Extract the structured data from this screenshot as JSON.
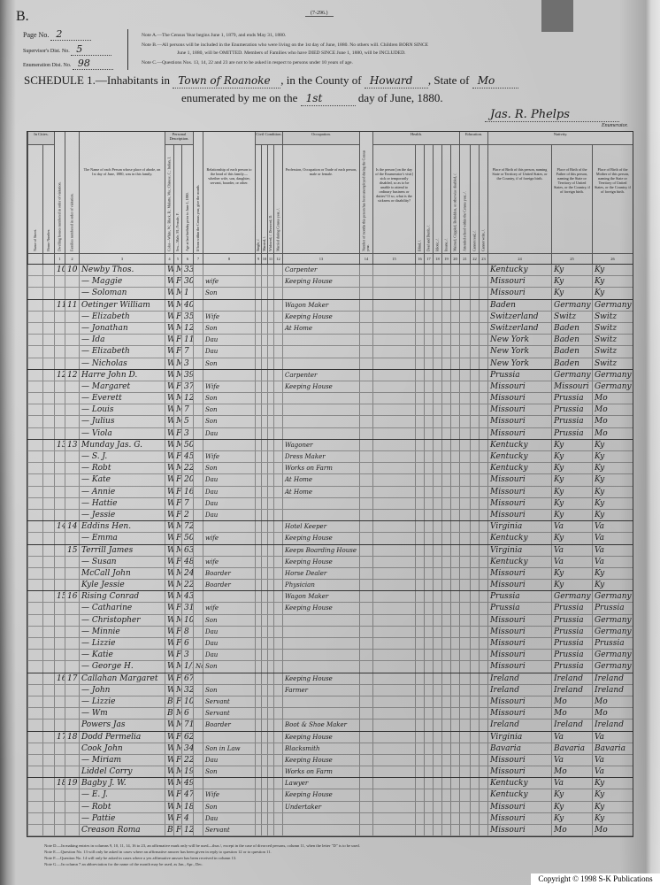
{
  "header": {
    "letter": "B.",
    "form_no": "(7-296.)",
    "page_label": "Page No.",
    "page_value": "2",
    "supervisor_label": "Supervisor's Dist. No.",
    "supervisor_value": "5",
    "enumeration_label": "Enumeration Dist. No.",
    "enumeration_value": "98",
    "notes": [
      "Note A.—The Census Year begins June 1, 1879, and ends May 31, 1880.",
      "Note B.—All persons will be included in the Enumeration who were living on the 1st day of June, 1880. No others will. Children BORN SINCE",
      "June 1, 1880, will be OMITTED. Members of Families who have DIED SINCE June 1, 1880, will be INCLUDED.",
      "Note C.—Questions Nos. 13, 14, 22 and 23 are not to be asked in respect to persons under 10 years of age."
    ],
    "schedule_prefix": "SCHEDULE 1.—Inhabitants in",
    "place": "Town of Roanoke",
    "county_label": ", in the County of",
    "county": "Howard",
    "state_label": ", State of",
    "state": "Mo",
    "enumerated_prefix": "enumerated by me on the",
    "day": "1st",
    "enumerated_suffix": "day of June, 1880.",
    "enumerator": "Jas. R. Phelps",
    "enumerator_label": "Enumerator."
  },
  "groups": {
    "in_cities": "In Cities.",
    "personal": "Personal Description.",
    "civil": "Civil Condition.",
    "occupation": "Occupation.",
    "health": "Health.",
    "education": "Education.",
    "nativity": "Nativity."
  },
  "columns": [
    {
      "n": "",
      "label": "Name of Street."
    },
    {
      "n": "",
      "label": "House Number."
    },
    {
      "n": "1",
      "label": "Dwelling houses numbered in order of visitation."
    },
    {
      "n": "2",
      "label": "Families numbered in order of visitation."
    },
    {
      "n": "3",
      "label": "The Name of each Person whose place of abode, on 1st day of June, 1880, was in this family."
    },
    {
      "n": "4",
      "label": "Color—White, W.; Black, B.; Mulatto, Mu.; Chinese, C.; Indian, I."
    },
    {
      "n": "5",
      "label": "Sex—Male, M.; Female, F."
    },
    {
      "n": "6",
      "label": "Age at last birthday prior to June 1, 1880."
    },
    {
      "n": "7",
      "label": "If born within the Census year, give the month."
    },
    {
      "n": "8",
      "label": "Relationship of each person to the head of this family—whether wife, son, daughter, servant, boarder, or other."
    },
    {
      "n": "9",
      "label": "Single, /."
    },
    {
      "n": "10",
      "label": "Married, /."
    },
    {
      "n": "11",
      "label": "Widowed, /. Divorced, D."
    },
    {
      "n": "12",
      "label": "Married during Census year, /."
    },
    {
      "n": "13",
      "label": "Profession, Occupation or Trade of each person, male or female."
    },
    {
      "n": "14",
      "label": "Number of months this person has been unemployed during the Census year."
    },
    {
      "n": "15",
      "label": "Is the person [on the day of the Enumerator's visit] sick or temporarily disabled, so as to be unable to attend to ordinary business or duties? If so, what is the sickness or disability?"
    },
    {
      "n": "16",
      "label": "Blind, /."
    },
    {
      "n": "17",
      "label": "Deaf and Dumb, /."
    },
    {
      "n": "18",
      "label": "Idiotic, /."
    },
    {
      "n": "19",
      "label": "Insane, /."
    },
    {
      "n": "20",
      "label": "Maimed, Crippled, Bedridden, or otherwise disabled, /."
    },
    {
      "n": "21",
      "label": "Attended school within the Census year, /."
    },
    {
      "n": "22",
      "label": "Cannot read, /."
    },
    {
      "n": "23",
      "label": "Cannot write, /."
    },
    {
      "n": "24",
      "label": "Place of Birth of this person, naming State or Territory of United States, or the Country, if of foreign birth."
    },
    {
      "n": "25",
      "label": "Place of Birth of the Father of this person, naming the State or Territory of United States, or the Country, if of foreign birth."
    },
    {
      "n": "26",
      "label": "Place of Birth of the Mother of this person, naming the State or Territory of United States, or the Country, if of foreign birth."
    }
  ],
  "rows": [
    {
      "d": "10",
      "f": "10",
      "name": "Newby Thos.",
      "color": "W",
      "sex": "M",
      "age": "33",
      "rel": "",
      "occ": "Carpenter",
      "birth": "Kentucky",
      "father": "Ky",
      "mother": "Ky"
    },
    {
      "d": "",
      "f": "",
      "name": "— Maggie",
      "color": "W",
      "sex": "F",
      "age": "30",
      "rel": "wife",
      "occ": "Keeping House",
      "birth": "Missouri",
      "father": "Ky",
      "mother": "Ky"
    },
    {
      "d": "",
      "f": "",
      "name": "— Soloman",
      "color": "W",
      "sex": "M",
      "age": "1",
      "rel": "Son",
      "occ": "",
      "birth": "Missouri",
      "father": "Ky",
      "mother": "Ky"
    },
    {
      "d": "11",
      "f": "11",
      "name": "Oetinger William",
      "color": "W",
      "sex": "M",
      "age": "40",
      "rel": "",
      "occ": "Wagon Maker",
      "birth": "Baden",
      "father": "Germany",
      "mother": "Germany"
    },
    {
      "d": "",
      "f": "",
      "name": "— Elizabeth",
      "color": "W",
      "sex": "F",
      "age": "35",
      "rel": "Wife",
      "occ": "Keeping House",
      "birth": "Switzerland",
      "father": "Switz",
      "mother": "Switz"
    },
    {
      "d": "",
      "f": "",
      "name": "— Jonathan",
      "color": "W",
      "sex": "M",
      "age": "12",
      "rel": "Son",
      "occ": "At Home",
      "birth": "Switzerland",
      "father": "Baden",
      "mother": "Switz"
    },
    {
      "d": "",
      "f": "",
      "name": "— Ida",
      "color": "W",
      "sex": "F",
      "age": "11",
      "rel": "Dau",
      "occ": "",
      "birth": "New York",
      "father": "Baden",
      "mother": "Switz"
    },
    {
      "d": "",
      "f": "",
      "name": "— Elizabeth",
      "color": "W",
      "sex": "F",
      "age": "7",
      "rel": "Dau",
      "occ": "",
      "birth": "New York",
      "father": "Baden",
      "mother": "Switz"
    },
    {
      "d": "",
      "f": "",
      "name": "— Nicholas",
      "color": "W",
      "sex": "M",
      "age": "3",
      "rel": "Son",
      "occ": "",
      "birth": "New York",
      "father": "Baden",
      "mother": "Switz"
    },
    {
      "d": "12",
      "f": "12",
      "name": "Harre John D.",
      "color": "W",
      "sex": "M",
      "age": "39",
      "rel": "",
      "occ": "Carpenter",
      "birth": "Prussia",
      "father": "Germany",
      "mother": "Germany"
    },
    {
      "d": "",
      "f": "",
      "name": "— Margaret",
      "color": "W",
      "sex": "F",
      "age": "37",
      "rel": "Wife",
      "occ": "Keeping House",
      "birth": "Missouri",
      "father": "Missouri",
      "mother": "Germany"
    },
    {
      "d": "",
      "f": "",
      "name": "— Everett",
      "color": "W",
      "sex": "M",
      "age": "12",
      "rel": "Son",
      "occ": "",
      "birth": "Missouri",
      "father": "Prussia",
      "mother": "Mo"
    },
    {
      "d": "",
      "f": "",
      "name": "— Louis",
      "color": "W",
      "sex": "M",
      "age": "7",
      "rel": "Son",
      "occ": "",
      "birth": "Missouri",
      "father": "Prussia",
      "mother": "Mo"
    },
    {
      "d": "",
      "f": "",
      "name": "— Julius",
      "color": "W",
      "sex": "M",
      "age": "5",
      "rel": "Son",
      "occ": "",
      "birth": "Missouri",
      "father": "Prussia",
      "mother": "Mo"
    },
    {
      "d": "",
      "f": "",
      "name": "— Viola",
      "color": "W",
      "sex": "F",
      "age": "3",
      "rel": "Dau",
      "occ": "",
      "birth": "Missouri",
      "father": "Prussia",
      "mother": "Mo"
    },
    {
      "d": "13",
      "f": "13",
      "name": "Munday Jas. G.",
      "color": "W",
      "sex": "M",
      "age": "50",
      "rel": "",
      "occ": "Wagoner",
      "birth": "Kentucky",
      "father": "Ky",
      "mother": "Ky"
    },
    {
      "d": "",
      "f": "",
      "name": "— S. J.",
      "color": "W",
      "sex": "F",
      "age": "45",
      "rel": "Wife",
      "occ": "Dress Maker",
      "birth": "Kentucky",
      "father": "Ky",
      "mother": "Ky"
    },
    {
      "d": "",
      "f": "",
      "name": "— Robt",
      "color": "W",
      "sex": "M",
      "age": "22",
      "rel": "Son",
      "occ": "Works on Farm",
      "birth": "Kentucky",
      "father": "Ky",
      "mother": "Ky"
    },
    {
      "d": "",
      "f": "",
      "name": "— Kate",
      "color": "W",
      "sex": "F",
      "age": "20",
      "rel": "Dau",
      "occ": "At Home",
      "birth": "Missouri",
      "father": "Ky",
      "mother": "Ky"
    },
    {
      "d": "",
      "f": "",
      "name": "— Annie",
      "color": "W",
      "sex": "F",
      "age": "16",
      "rel": "Dau",
      "occ": "At Home",
      "birth": "Missouri",
      "father": "Ky",
      "mother": "Ky"
    },
    {
      "d": "",
      "f": "",
      "name": "— Hattie",
      "color": "W",
      "sex": "F",
      "age": "7",
      "rel": "Dau",
      "occ": "",
      "birth": "Missouri",
      "father": "Ky",
      "mother": "Ky"
    },
    {
      "d": "",
      "f": "",
      "name": "— Jessie",
      "color": "W",
      "sex": "F",
      "age": "2",
      "rel": "Dau",
      "occ": "",
      "birth": "Missouri",
      "father": "Ky",
      "mother": "Ky"
    },
    {
      "d": "14",
      "f": "14",
      "name": "Eddins Hen.",
      "color": "W",
      "sex": "M",
      "age": "72",
      "rel": "",
      "occ": "Hotel Keeper",
      "birth": "Virginia",
      "father": "Va",
      "mother": "Va"
    },
    {
      "d": "",
      "f": "",
      "name": "— Emma",
      "color": "W",
      "sex": "F",
      "age": "50",
      "rel": "wife",
      "occ": "Keeping House",
      "birth": "Kentucky",
      "father": "Ky",
      "mother": "Va"
    },
    {
      "d": "",
      "f": "15",
      "name": "Terrill James",
      "color": "W",
      "sex": "M",
      "age": "63",
      "rel": "",
      "occ": "Keeps Boarding House",
      "birth": "Virginia",
      "father": "Va",
      "mother": "Va"
    },
    {
      "d": "",
      "f": "",
      "name": "— Susan",
      "color": "W",
      "sex": "F",
      "age": "48",
      "rel": "wife",
      "occ": "Keeping House",
      "birth": "Kentucky",
      "father": "Va",
      "mother": "Va"
    },
    {
      "d": "",
      "f": "",
      "name": "McCall John",
      "color": "W",
      "sex": "M",
      "age": "24",
      "rel": "Boarder",
      "occ": "Horse Dealer",
      "birth": "Missouri",
      "father": "Ky",
      "mother": "Ky"
    },
    {
      "d": "",
      "f": "",
      "name": "Kyle Jessie",
      "color": "W",
      "sex": "M",
      "age": "22",
      "rel": "Boarder",
      "occ": "Physician",
      "birth": "Missouri",
      "father": "Ky",
      "mother": "Ky"
    },
    {
      "d": "15",
      "f": "16",
      "name": "Rising Conrad",
      "color": "W",
      "sex": "M",
      "age": "43",
      "rel": "",
      "occ": "Wagon Maker",
      "birth": "Prussia",
      "father": "Germany",
      "mother": "Germany"
    },
    {
      "d": "",
      "f": "",
      "name": "— Catharine",
      "color": "W",
      "sex": "F",
      "age": "31",
      "rel": "wife",
      "occ": "Keeping House",
      "birth": "Prussia",
      "father": "Prussia",
      "mother": "Prussia"
    },
    {
      "d": "",
      "f": "",
      "name": "— Christopher",
      "color": "W",
      "sex": "M",
      "age": "10",
      "rel": "Son",
      "occ": "",
      "birth": "Missouri",
      "father": "Prussia",
      "mother": "Germany"
    },
    {
      "d": "",
      "f": "",
      "name": "— Minnie",
      "color": "W",
      "sex": "F",
      "age": "8",
      "rel": "Dau",
      "occ": "",
      "birth": "Missouri",
      "father": "Prussia",
      "mother": "Germany"
    },
    {
      "d": "",
      "f": "",
      "name": "— Lizzie",
      "color": "W",
      "sex": "F",
      "age": "6",
      "rel": "Dau",
      "occ": "",
      "birth": "Missouri",
      "father": "Prussia",
      "mother": "Prussia"
    },
    {
      "d": "",
      "f": "",
      "name": "— Katie",
      "color": "W",
      "sex": "F",
      "age": "3",
      "rel": "Dau",
      "occ": "",
      "birth": "Missouri",
      "father": "Prussia",
      "mother": "Germany"
    },
    {
      "d": "",
      "f": "",
      "name": "— George H.",
      "color": "W",
      "sex": "M",
      "age": "1/12",
      "month": "Nov",
      "rel": "Son",
      "occ": "",
      "birth": "Missouri",
      "father": "Prussia",
      "mother": "Germany"
    },
    {
      "d": "16",
      "f": "17",
      "name": "Callahan Margaret",
      "color": "W",
      "sex": "F",
      "age": "67",
      "rel": "",
      "occ": "Keeping House",
      "birth": "Ireland",
      "father": "Ireland",
      "mother": "Ireland"
    },
    {
      "d": "",
      "f": "",
      "name": "— John",
      "color": "W",
      "sex": "M",
      "age": "32",
      "rel": "Son",
      "occ": "Farmer",
      "birth": "Ireland",
      "father": "Ireland",
      "mother": "Ireland"
    },
    {
      "d": "",
      "f": "",
      "name": "— Lizzie",
      "color": "B",
      "sex": "F",
      "age": "10",
      "rel": "Servant",
      "occ": "",
      "birth": "Missouri",
      "father": "Mo",
      "mother": "Mo"
    },
    {
      "d": "",
      "f": "",
      "name": "— Wm",
      "color": "B",
      "sex": "M",
      "age": "6",
      "rel": "Servant",
      "occ": "",
      "birth": "Missouri",
      "father": "Mo",
      "mother": "Mo"
    },
    {
      "d": "",
      "f": "",
      "name": "Powers Jas",
      "color": "W",
      "sex": "M",
      "age": "71",
      "rel": "Boarder",
      "occ": "Boot & Shoe Maker",
      "birth": "Ireland",
      "father": "Ireland",
      "mother": "Ireland"
    },
    {
      "d": "17",
      "f": "18",
      "name": "Dodd Permelia",
      "color": "W",
      "sex": "F",
      "age": "62",
      "rel": "",
      "occ": "Keeping House",
      "birth": "Virginia",
      "father": "Va",
      "mother": "Va"
    },
    {
      "d": "",
      "f": "",
      "name": "Cook John",
      "color": "W",
      "sex": "M",
      "age": "34",
      "rel": "Son in Law",
      "occ": "Blacksmith",
      "birth": "Bavaria",
      "father": "Bavaria",
      "mother": "Bavaria"
    },
    {
      "d": "",
      "f": "",
      "name": "— Miriam",
      "color": "W",
      "sex": "F",
      "age": "22",
      "rel": "Dau",
      "occ": "Keeping House",
      "birth": "Missouri",
      "father": "Va",
      "mother": "Va"
    },
    {
      "d": "",
      "f": "",
      "name": "Liddel Corry",
      "color": "W",
      "sex": "M",
      "age": "19",
      "rel": "Son",
      "occ": "Works on Farm",
      "birth": "Missouri",
      "father": "Mo",
      "mother": "Va"
    },
    {
      "d": "18",
      "f": "19",
      "name": "Bagby J. W.",
      "color": "W",
      "sex": "M",
      "age": "49",
      "rel": "",
      "occ": "Lawyer",
      "birth": "Kentucky",
      "father": "Va",
      "mother": "Ky"
    },
    {
      "d": "",
      "f": "",
      "name": "— E. J.",
      "color": "W",
      "sex": "F",
      "age": "47",
      "rel": "Wife",
      "occ": "Keeping House",
      "birth": "Kentucky",
      "father": "Ky",
      "mother": "Ky"
    },
    {
      "d": "",
      "f": "",
      "name": "— Robt",
      "color": "W",
      "sex": "M",
      "age": "18",
      "rel": "Son",
      "occ": "Undertaker",
      "birth": "Missouri",
      "father": "Ky",
      "mother": "Ky"
    },
    {
      "d": "",
      "f": "",
      "name": "— Pattie",
      "color": "W",
      "sex": "F",
      "age": "4",
      "rel": "Dau",
      "occ": "",
      "birth": "Missouri",
      "father": "Ky",
      "mother": "Ky"
    },
    {
      "d": "",
      "f": "",
      "name": "Creason Roma",
      "color": "B",
      "sex": "F",
      "age": "12",
      "rel": "Servant",
      "occ": "",
      "birth": "Missouri",
      "father": "Mo",
      "mother": "Mo"
    }
  ],
  "footnotes": [
    "Note D.—In making entries in columns 9, 10, 11, 14, 16 to 23, an affirmative mark only will be used—thus /, except in the case of divorced persons, column 11, when the letter \"D\" is to be used.",
    "Note E.—Question No. 13 will only be asked in cases where an affirmative answer has been given in reply to question 12 or to question 11.",
    "Note F.—Question No. 14 will only be asked in cases where a yes affirmative answer has been received in column 13.",
    "Note G.—In column 7 an abbreviation for the name of the month may be used, as Jan., Apr., Dec."
  ],
  "copyright": "Copyright © 1998 S-K Publications"
}
